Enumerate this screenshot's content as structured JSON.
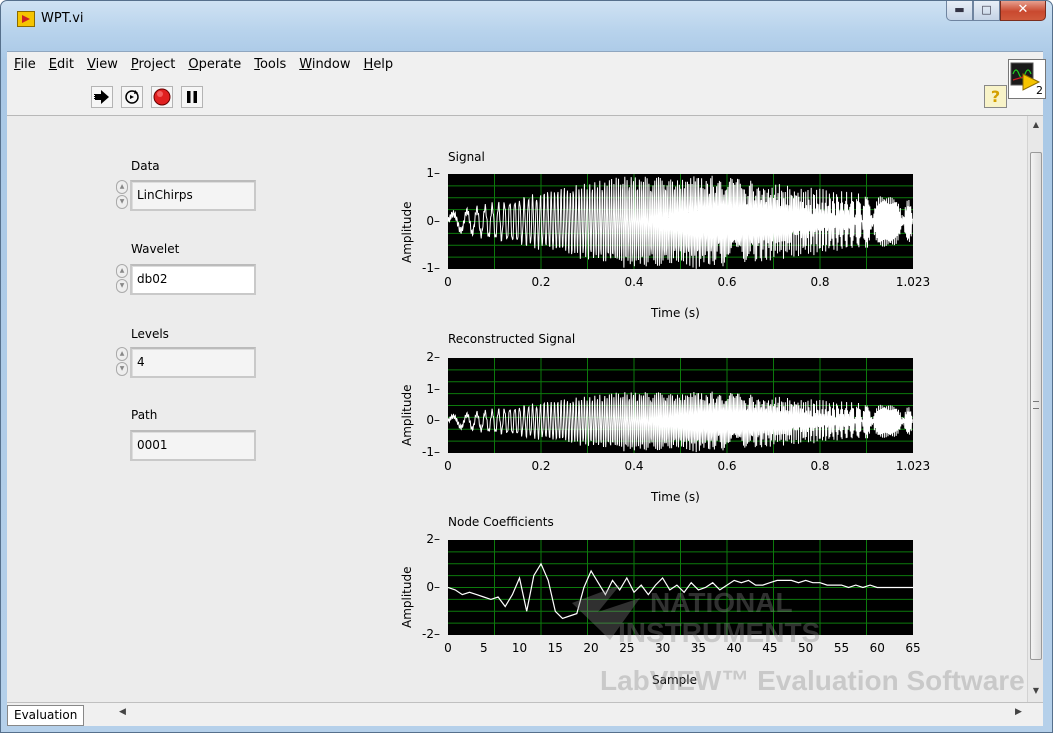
{
  "window": {
    "title": "WPT.vi"
  },
  "menu": [
    "File",
    "Edit",
    "View",
    "Project",
    "Operate",
    "Tools",
    "Window",
    "Help"
  ],
  "menu_mnemonic": [
    "F",
    "E",
    "V",
    "P",
    "O",
    "T",
    "W",
    "H"
  ],
  "toolbar": {
    "help_glyph": "?",
    "vi_icon_number": "2"
  },
  "controls": {
    "data": {
      "label": "Data",
      "value": "LinChirps"
    },
    "wavelet": {
      "label": "Wavelet",
      "value": "db02"
    },
    "levels": {
      "label": "Levels",
      "value": "4"
    },
    "path": {
      "label": "Path",
      "value": "0001"
    }
  },
  "graphs": {
    "signal": {
      "title": "Signal",
      "xlabel": "Time (s)",
      "ylabel": "Amplitude",
      "yticks": [
        "1",
        "0",
        "-1"
      ],
      "xticks": [
        "0",
        "0.2",
        "0.4",
        "0.6",
        "0.8",
        "1.023"
      ]
    },
    "reconstructed": {
      "title": "Reconstructed Signal",
      "xlabel": "Time (s)",
      "ylabel": "Amplitude",
      "yticks": [
        "2",
        "1",
        "0",
        "-1"
      ],
      "xticks": [
        "0",
        "0.2",
        "0.4",
        "0.6",
        "0.8",
        "1.023"
      ]
    },
    "coefficients": {
      "title": "Node Coefficients",
      "xlabel": "Sample",
      "ylabel": "Amplitude",
      "yticks": [
        "2",
        "0",
        "-2"
      ],
      "xticks": [
        "0",
        "5",
        "10",
        "15",
        "20",
        "25",
        "30",
        "35",
        "40",
        "45",
        "50",
        "55",
        "60",
        "65"
      ]
    }
  },
  "watermark": {
    "line1": "NATIONAL",
    "line2": "INSTRUMENTS",
    "line3": "LabVIEW™ Evaluation Software"
  },
  "bottom": {
    "tab": "Evaluation"
  },
  "colors": {
    "plot_bg": "#000000",
    "grid": "#0c7a0c",
    "trace": "#ffffff"
  },
  "chart_data": [
    {
      "type": "line",
      "title": "Signal",
      "xlabel": "Time (s)",
      "ylabel": "Amplitude",
      "xlim": [
        0,
        1.023
      ],
      "ylim": [
        -1,
        1
      ],
      "series": [
        {
          "description": "linear chirp, amplitude rising to ~1 near 0.4-0.6 s then decaying"
        }
      ]
    },
    {
      "type": "line",
      "title": "Reconstructed Signal",
      "xlabel": "Time (s)",
      "ylabel": "Amplitude",
      "xlim": [
        0,
        1.023
      ],
      "ylim": [
        -1,
        2
      ]
    },
    {
      "type": "line",
      "title": "Node Coefficients",
      "xlabel": "Sample",
      "ylabel": "Amplitude",
      "xlim": [
        0,
        65
      ],
      "ylim": [
        -2,
        2
      ],
      "x": [
        0,
        1,
        2,
        3,
        4,
        5,
        6,
        7,
        8,
        9,
        10,
        11,
        12,
        13,
        14,
        15,
        16,
        17,
        18,
        19,
        20,
        21,
        22,
        23,
        24,
        25,
        26,
        27,
        28,
        29,
        30,
        31,
        32,
        33,
        34,
        35,
        36,
        37,
        38,
        39,
        40,
        41,
        42,
        43,
        44,
        45,
        46,
        47,
        48,
        49,
        50,
        51,
        52,
        53,
        54,
        55,
        56,
        57,
        58,
        59,
        60,
        61,
        62,
        63,
        64,
        65
      ],
      "y": [
        0,
        -0.1,
        -0.3,
        -0.2,
        -0.3,
        -0.4,
        -0.5,
        -0.4,
        -0.8,
        -0.3,
        0.4,
        -1.0,
        0.5,
        1.0,
        0.3,
        -1.0,
        -1.3,
        -1.2,
        -1.1,
        0.0,
        0.7,
        0.2,
        -0.3,
        0.3,
        -0.1,
        0.4,
        -0.2,
        0.1,
        -0.3,
        0.1,
        0.4,
        -0.1,
        0.1,
        -0.2,
        0.2,
        -0.1,
        0.0,
        0.2,
        -0.1,
        0.1,
        0.3,
        0.2,
        0.3,
        0.1,
        0.1,
        0.2,
        0.3,
        0.3,
        0.3,
        0.2,
        0.3,
        0.2,
        0.2,
        0.1,
        0.1,
        0.1,
        0.0,
        0.1,
        0.0,
        0.1,
        0.0,
        0.0,
        0.0,
        0.0,
        0.0,
        0.0
      ]
    }
  ]
}
